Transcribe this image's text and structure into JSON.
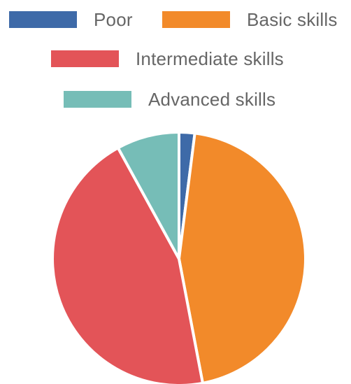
{
  "chart_data": {
    "type": "pie",
    "title": "",
    "legend_position": "top",
    "categories": [
      "Poor",
      "Basic skills",
      "Intermediate skills",
      "Advanced skills"
    ],
    "values": [
      2,
      45,
      45,
      8
    ],
    "colors": [
      "#3e6aa8",
      "#f28a2a",
      "#e35458",
      "#76bdb7"
    ]
  }
}
